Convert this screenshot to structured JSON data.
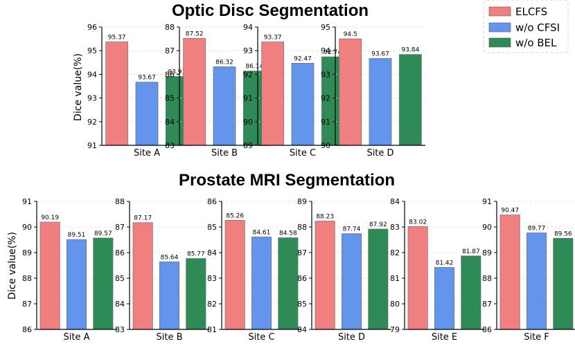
{
  "legend": {
    "entries": [
      "ELCFS",
      "w/o CFSI",
      "w/o BEL"
    ],
    "colors": [
      "#f08080",
      "#6495ed",
      "#2e8b57"
    ]
  },
  "chart_data": [
    {
      "type": "bar",
      "group": "optic",
      "title": "Optic Disc Segmentation",
      "ylabel": "Dice value(%)",
      "xlabel": "Site A",
      "categories": [
        "ELCFS",
        "w/o CFSI",
        "w/o BEL"
      ],
      "values": [
        95.37,
        93.67,
        93.91
      ],
      "ylim": [
        91,
        96
      ],
      "ticks": [
        91,
        92,
        93,
        94,
        95,
        96
      ]
    },
    {
      "type": "bar",
      "group": "optic",
      "xlabel": "Site B",
      "categories": [
        "ELCFS",
        "w/o CFSI",
        "w/o BEL"
      ],
      "values": [
        87.52,
        86.32,
        86.14
      ],
      "ylim": [
        83,
        88
      ],
      "ticks": [
        83,
        84,
        85,
        86,
        87,
        88
      ]
    },
    {
      "type": "bar",
      "group": "optic",
      "xlabel": "Site C",
      "categories": [
        "ELCFS",
        "w/o CFSI",
        "w/o BEL"
      ],
      "values": [
        93.37,
        92.47,
        92.74
      ],
      "ylim": [
        89,
        94
      ],
      "ticks": [
        89,
        90,
        91,
        92,
        93,
        94
      ]
    },
    {
      "type": "bar",
      "group": "optic",
      "xlabel": "Site D",
      "categories": [
        "ELCFS",
        "w/o CFSI",
        "w/o BEL"
      ],
      "values": [
        94.5,
        93.67,
        93.84
      ],
      "value_labels": [
        "94.5",
        "93.67",
        "93.84"
      ],
      "ylim": [
        90,
        95
      ],
      "ticks": [
        90,
        91,
        92,
        93,
        94,
        95
      ]
    },
    {
      "type": "bar",
      "group": "prostate",
      "title": "Prostate MRI Segmentation",
      "ylabel": "Dice value(%)",
      "xlabel": "Site A",
      "categories": [
        "ELCFS",
        "w/o CFSI",
        "w/o BEL"
      ],
      "values": [
        90.19,
        89.51,
        89.57
      ],
      "ylim": [
        86,
        91
      ],
      "ticks": [
        86,
        87,
        88,
        89,
        90,
        91
      ]
    },
    {
      "type": "bar",
      "group": "prostate",
      "xlabel": "Site B",
      "categories": [
        "ELCFS",
        "w/o CFSI",
        "w/o BEL"
      ],
      "values": [
        87.17,
        85.64,
        85.77
      ],
      "ylim": [
        83,
        88
      ],
      "ticks": [
        83,
        84,
        85,
        86,
        87,
        88
      ]
    },
    {
      "type": "bar",
      "group": "prostate",
      "xlabel": "Site C",
      "categories": [
        "ELCFS",
        "w/o CFSI",
        "w/o BEL"
      ],
      "values": [
        85.26,
        84.61,
        84.58
      ],
      "ylim": [
        81,
        86
      ],
      "ticks": [
        81,
        82,
        83,
        84,
        85,
        86
      ]
    },
    {
      "type": "bar",
      "group": "prostate",
      "xlabel": "Site D",
      "categories": [
        "ELCFS",
        "w/o CFSI",
        "w/o BEL"
      ],
      "values": [
        88.23,
        87.74,
        87.92
      ],
      "ylim": [
        84,
        89
      ],
      "ticks": [
        84,
        85,
        86,
        87,
        88,
        89
      ]
    },
    {
      "type": "bar",
      "group": "prostate",
      "xlabel": "Site E",
      "categories": [
        "ELCFS",
        "w/o CFSI",
        "w/o BEL"
      ],
      "values": [
        83.02,
        81.42,
        81.87
      ],
      "ylim": [
        79,
        84
      ],
      "ticks": [
        79,
        80,
        81,
        82,
        83,
        84
      ]
    },
    {
      "type": "bar",
      "group": "prostate",
      "xlabel": "Site F",
      "categories": [
        "ELCFS",
        "w/o CFSI",
        "w/o BEL"
      ],
      "values": [
        90.47,
        89.77,
        89.56
      ],
      "ylim": [
        86,
        91
      ],
      "ticks": [
        86,
        87,
        88,
        89,
        90,
        91
      ]
    }
  ]
}
